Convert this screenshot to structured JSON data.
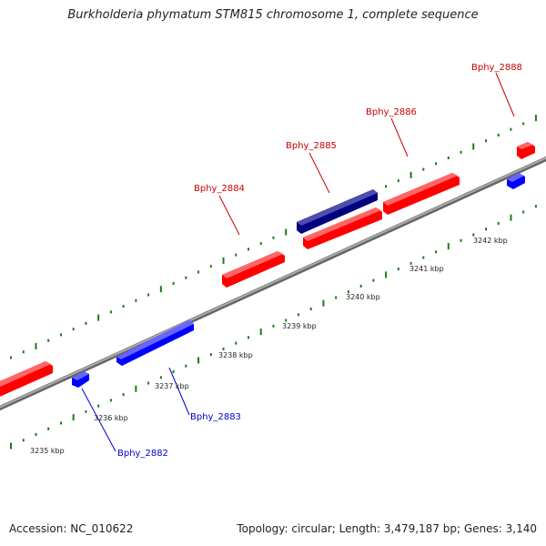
{
  "title": "Burkholderia phymatum STM815 chromosome 1, complete sequence",
  "footer": {
    "accession": "Accession: NC_010622",
    "summary": "Topology: circular; Length: 3,479,187 bp; Genes: 3,140"
  },
  "colors": {
    "forward_gene": "#ff0000",
    "reverse_gene": "#0000ff",
    "selected_gene": "#000080",
    "backbone": "#888888",
    "ticks": "#1a7a1a",
    "forward_label": "#cc0000",
    "reverse_label": "#0000cc"
  },
  "ruler_labels": [
    {
      "kbp": 3235,
      "text": "3235 kbp"
    },
    {
      "kbp": 3236,
      "text": "3236 kbp"
    },
    {
      "kbp": 3237,
      "text": "3237 kbp"
    },
    {
      "kbp": 3238,
      "text": "3238 kbp"
    },
    {
      "kbp": 3239,
      "text": "3239 kbp"
    },
    {
      "kbp": 3240,
      "text": "3240 kbp"
    },
    {
      "kbp": 3241,
      "text": "3241 kbp"
    },
    {
      "kbp": 3242,
      "text": "3242 kbp"
    }
  ],
  "gene_labels": [
    {
      "name": "Bphy_2882",
      "strand": "reverse"
    },
    {
      "name": "Bphy_2883",
      "strand": "reverse"
    },
    {
      "name": "Bphy_2884",
      "strand": "forward"
    },
    {
      "name": "Bphy_2885",
      "strand": "forward"
    },
    {
      "name": "Bphy_2886",
      "strand": "forward"
    },
    {
      "name": "Bphy_2888",
      "strand": "forward"
    }
  ]
}
